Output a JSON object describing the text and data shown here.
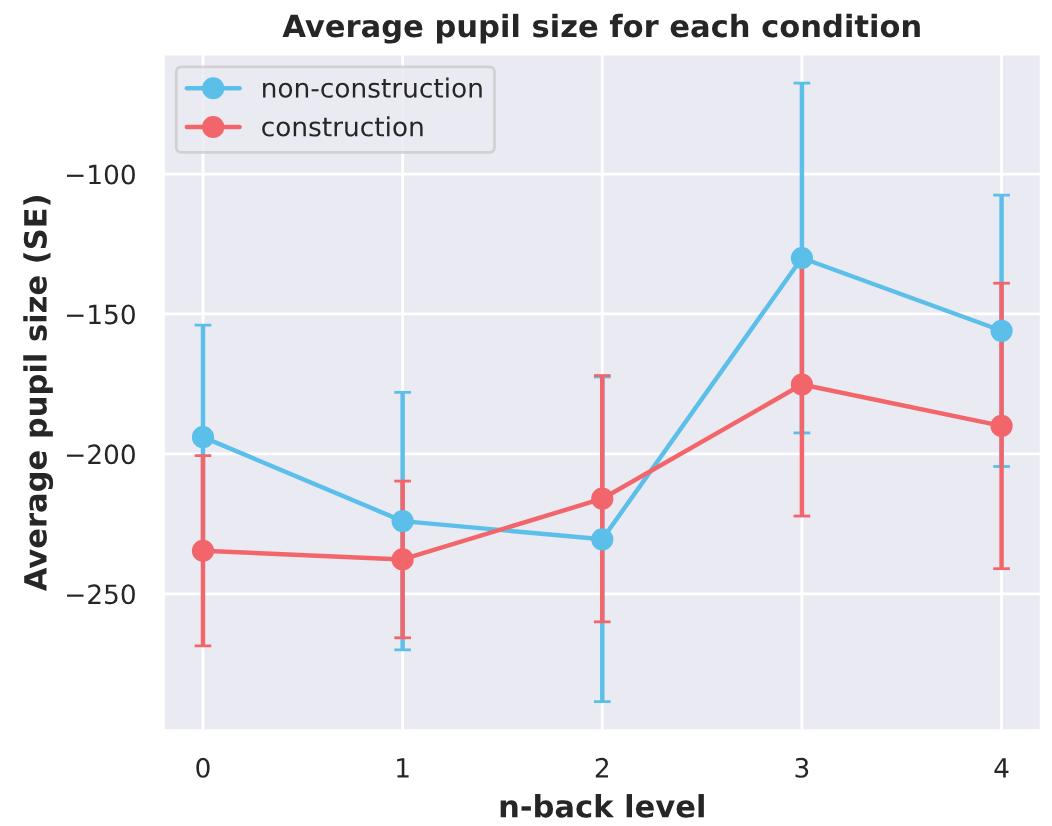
{
  "chart_data": {
    "type": "line",
    "title": "Average pupil size for each condition",
    "xlabel": "n-back level",
    "ylabel": "Average pupil size (SE)",
    "x": [
      0,
      1,
      2,
      3,
      4
    ],
    "xlim": [
      -0.2,
      4.2
    ],
    "xticks": [
      0,
      1,
      2,
      3,
      4
    ],
    "ylim": [
      -299,
      -57
    ],
    "yticks": [
      -250,
      -200,
      -150,
      -100
    ],
    "series": [
      {
        "name": "non-construction",
        "color": "#5bbfea",
        "values": [
          -194,
          -224,
          -230.5,
          -130,
          -156
        ],
        "errors": [
          40,
          46,
          58,
          62.5,
          48.5
        ]
      },
      {
        "name": "construction",
        "color": "#f2666b",
        "values": [
          -234.6,
          -237.7,
          -216,
          -175.2,
          -190
        ],
        "errors": [
          34,
          28,
          44,
          47,
          51
        ]
      }
    ],
    "marker": "circle",
    "line_style": "solid",
    "grid": true,
    "legend": "top left"
  }
}
